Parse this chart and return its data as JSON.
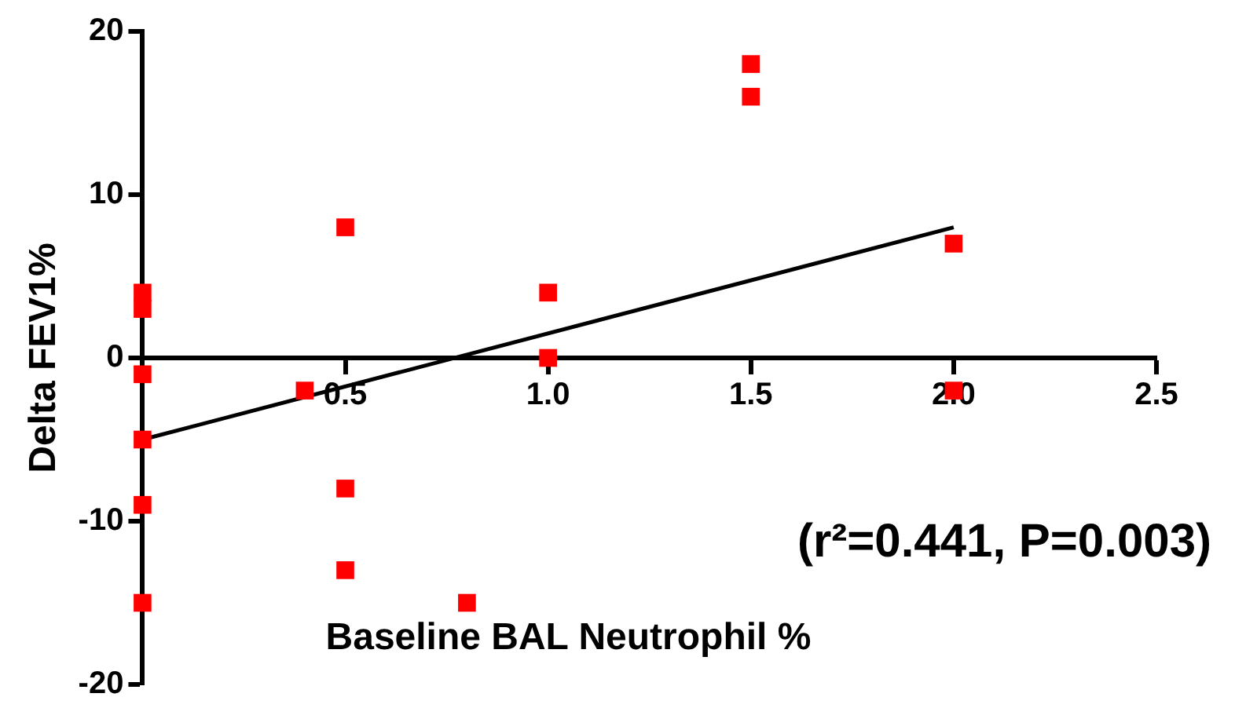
{
  "chart_data": {
    "type": "scatter",
    "xlabel": "Baseline BAL Neutrophil %",
    "ylabel": "Delta FEV1%",
    "annotations": [
      "(r²=0.441, P=0.003)"
    ],
    "xlim": [
      0,
      2.5
    ],
    "xticks": [
      0.5,
      {
        "value": 1,
        "label": "1.0"
      },
      1.5,
      {
        "value": 2,
        "label": "2.0"
      },
      2.5
    ],
    "ylim": [
      -20,
      20
    ],
    "yticks": [
      -20,
      -10,
      0,
      10,
      20
    ],
    "grid": false,
    "legend": false,
    "marker": "square",
    "series": [
      {
        "color": "#ff0000",
        "x": [
          0,
          0,
          0,
          0,
          0,
          0,
          0.4,
          0.5,
          0.5,
          0.5,
          0.8,
          1,
          1,
          1.5,
          1.5,
          2,
          2
        ],
        "values": [
          4,
          3,
          -1,
          -5,
          -9,
          -15,
          -2,
          8,
          -8,
          -13,
          -15,
          4,
          0,
          18,
          16,
          7,
          -2
        ]
      },
      {
        "type": "line",
        "color": "#000000",
        "marker": "none",
        "x": [
          0,
          2
        ],
        "values": [
          -5,
          8
        ]
      }
    ]
  }
}
